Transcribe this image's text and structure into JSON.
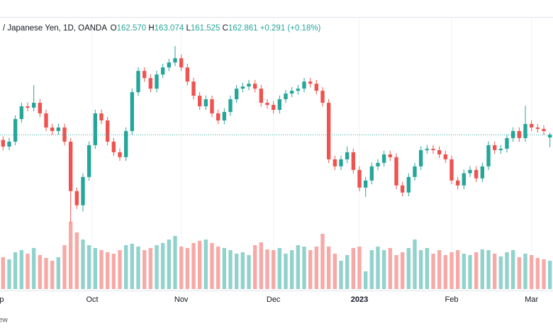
{
  "header": {
    "symbol": "/ Japanese Yen, 1D, OANDA",
    "open_label": "O",
    "open": "162.570",
    "high_label": "H",
    "high": "163.074",
    "low_label": "L",
    "low": "161.525",
    "close_label": "C",
    "close": "162.861",
    "change": "+0.291 (+0.18%)"
  },
  "chart_data": {
    "type": "candlestick",
    "open": [
      162.3,
      161.59,
      162.12,
      164.55,
      165.92,
      165.77,
      166.3,
      165.16,
      163.64,
      163.26,
      163.64,
      162.12,
      156.8,
      155.28,
      158.32,
      161.74,
      165.16,
      164.4,
      162.12,
      160.98,
      160.45,
      163.26,
      167.44,
      169.72,
      168.96,
      167.82,
      169.34,
      170.1,
      170.63,
      171.09,
      170.1,
      168.58,
      167.06,
      165.92,
      166.68,
      165.16,
      164.4,
      165.31,
      166.68,
      167.82,
      168.05,
      168.35,
      167.82,
      166.3,
      166.07,
      165.54,
      166.68,
      167.29,
      167.59,
      167.82,
      168.58,
      168.35,
      167.59,
      166.3,
      160.22,
      159.46,
      160.22,
      160.98,
      159.08,
      157.18,
      157.94,
      159.46,
      159.84,
      160.75,
      160.45,
      157.41,
      156.65,
      158.32,
      159.46,
      161.21,
      161.36,
      161.21,
      160.75,
      160.22,
      157.94,
      157.41,
      158.72,
      159.08,
      158.17,
      159.46,
      161.74,
      161.21,
      161.36,
      162.5,
      163.26,
      162.5,
      164.02,
      163.64,
      163.49,
      162.57
    ],
    "high": [
      162.7,
      162.52,
      164.95,
      166.32,
      166.32,
      168.2,
      166.7,
      165.56,
      164.04,
      164.04,
      164.04,
      162.52,
      157.2,
      158.72,
      162.14,
      165.56,
      165.56,
      164.8,
      162.52,
      161.38,
      163.66,
      167.84,
      170.12,
      170.12,
      169.36,
      169.74,
      170.5,
      171.03,
      172.4,
      171.49,
      170.5,
      168.98,
      167.46,
      167.08,
      167.08,
      165.56,
      165.71,
      167.08,
      168.22,
      168.45,
      168.75,
      168.75,
      168.22,
      166.7,
      166.47,
      167.08,
      167.69,
      167.99,
      168.22,
      168.98,
      168.98,
      168.75,
      167.99,
      166.7,
      160.62,
      160.62,
      161.6,
      161.38,
      159.48,
      158.34,
      159.86,
      160.24,
      161.15,
      161.15,
      160.85,
      157.81,
      158.72,
      159.86,
      161.61,
      161.76,
      161.76,
      161.61,
      161.15,
      160.62,
      158.34,
      159.12,
      159.48,
      159.48,
      159.86,
      162.14,
      162.14,
      161.76,
      162.9,
      163.66,
      163.66,
      166.0,
      164.42,
      164.04,
      163.89,
      163.074
    ],
    "low": [
      161.19,
      161.19,
      161.72,
      164.15,
      165.37,
      165.37,
      164.76,
      163.24,
      162.86,
      162.86,
      161.72,
      153.4,
      154.88,
      154.6,
      157.92,
      161.34,
      164.0,
      161.72,
      160.58,
      160.05,
      160.05,
      162.86,
      167.04,
      168.56,
      167.42,
      167.42,
      168.94,
      169.7,
      170.23,
      169.7,
      168.18,
      166.66,
      165.52,
      165.52,
      164.76,
      164.0,
      164.0,
      164.91,
      166.28,
      167.42,
      167.65,
      167.42,
      165.9,
      165.67,
      165.14,
      165.14,
      166.28,
      166.89,
      167.19,
      167.42,
      167.95,
      167.19,
      165.9,
      159.82,
      159.06,
      159.06,
      159.82,
      158.68,
      156.78,
      156.2,
      157.54,
      159.06,
      159.44,
      160.05,
      157.01,
      156.25,
      156.25,
      157.92,
      159.06,
      160.81,
      160.81,
      160.35,
      159.82,
      157.54,
      157.01,
      157.01,
      158.32,
      157.77,
      157.77,
      159.06,
      160.81,
      160.81,
      160.96,
      162.1,
      162.1,
      162.1,
      163.24,
      163.09,
      162.86,
      161.525
    ],
    "close": [
      161.59,
      162.12,
      164.55,
      165.92,
      165.77,
      166.3,
      165.16,
      163.64,
      163.26,
      163.64,
      162.12,
      156.8,
      155.28,
      158.32,
      161.74,
      165.16,
      164.4,
      162.12,
      160.98,
      160.45,
      163.26,
      167.44,
      169.72,
      168.96,
      167.82,
      169.34,
      170.1,
      170.63,
      171.09,
      170.1,
      168.58,
      167.06,
      165.92,
      166.68,
      165.16,
      164.4,
      165.31,
      166.68,
      167.82,
      168.05,
      168.35,
      167.82,
      166.3,
      166.07,
      165.54,
      166.68,
      167.29,
      167.59,
      167.82,
      168.58,
      168.35,
      167.59,
      166.3,
      160.22,
      159.46,
      160.22,
      160.98,
      159.08,
      157.18,
      157.94,
      159.46,
      159.84,
      160.75,
      160.45,
      157.41,
      156.65,
      158.32,
      159.46,
      161.21,
      161.36,
      161.21,
      160.75,
      160.22,
      157.94,
      157.41,
      158.72,
      159.08,
      158.17,
      159.46,
      161.74,
      161.21,
      161.36,
      162.5,
      163.26,
      162.5,
      164.02,
      163.64,
      163.49,
      163.26,
      162.861
    ],
    "volume": [
      45,
      42,
      52,
      55,
      50,
      58,
      48,
      44,
      40,
      45,
      62,
      95,
      80,
      70,
      62,
      58,
      55,
      52,
      50,
      55,
      62,
      64,
      60,
      55,
      58,
      62,
      65,
      70,
      75,
      60,
      58,
      65,
      68,
      70,
      65,
      60,
      58,
      55,
      50,
      52,
      48,
      62,
      66,
      56,
      55,
      58,
      50,
      55,
      62,
      60,
      55,
      60,
      78,
      60,
      50,
      40,
      48,
      58,
      60,
      25,
      55,
      60,
      55,
      58,
      48,
      52,
      58,
      70,
      55,
      58,
      50,
      55,
      48,
      52,
      55,
      50,
      48,
      52,
      56,
      55,
      50,
      46,
      52,
      55,
      45,
      50,
      48,
      44,
      42,
      40
    ],
    "up_color": "#26a69a",
    "down_color": "#ef5350",
    "up_volume_color": "#92d2cc",
    "down_volume_color": "#f7a9a7",
    "ylim": [
      150,
      174
    ],
    "volume_lim": [
      0,
      100
    ],
    "xlim": [
      -0.5,
      89.5
    ],
    "xticks": [
      {
        "value": -1,
        "label": "Sep"
      },
      {
        "value": 14.5,
        "label": "Oct"
      },
      {
        "value": 29,
        "label": "Nov"
      },
      {
        "value": 44,
        "label": "Dec"
      },
      {
        "value": 58,
        "label": "2023",
        "bold": true
      },
      {
        "value": 73,
        "label": "Feb"
      },
      {
        "value": 86,
        "label": "Mar"
      }
    ],
    "grid": true,
    "last_price_line": true
  },
  "footer": "ew"
}
